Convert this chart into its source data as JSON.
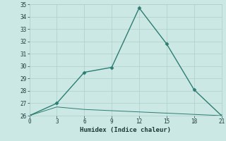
{
  "xlabel": "Humidex (Indice chaleur)",
  "x_ticks": [
    0,
    3,
    6,
    9,
    12,
    15,
    18,
    21
  ],
  "ylim": [
    26,
    35
  ],
  "yticks": [
    26,
    27,
    28,
    29,
    30,
    31,
    32,
    33,
    34,
    35
  ],
  "xlim": [
    0,
    21
  ],
  "line1_x": [
    0,
    3,
    6,
    9,
    12,
    15,
    18,
    21
  ],
  "line1_y": [
    26.0,
    27.0,
    29.5,
    29.9,
    34.7,
    31.8,
    28.1,
    26.0
  ],
  "line2_x": [
    0,
    3,
    6,
    9,
    12,
    15,
    18,
    21
  ],
  "line2_y": [
    26.0,
    26.7,
    26.5,
    26.4,
    26.3,
    26.2,
    26.1,
    26.0
  ],
  "line_color": "#2d7d72",
  "bg_color": "#cce8e4",
  "grid_color": "#aecfcb",
  "tick_label_color": "#1a3a38",
  "xlabel_color": "#1a3a38",
  "marker": "D",
  "marker_size": 2.5,
  "linewidth1": 1.0,
  "linewidth2": 0.7,
  "tick_fontsize": 5.5,
  "xlabel_fontsize": 6.5
}
